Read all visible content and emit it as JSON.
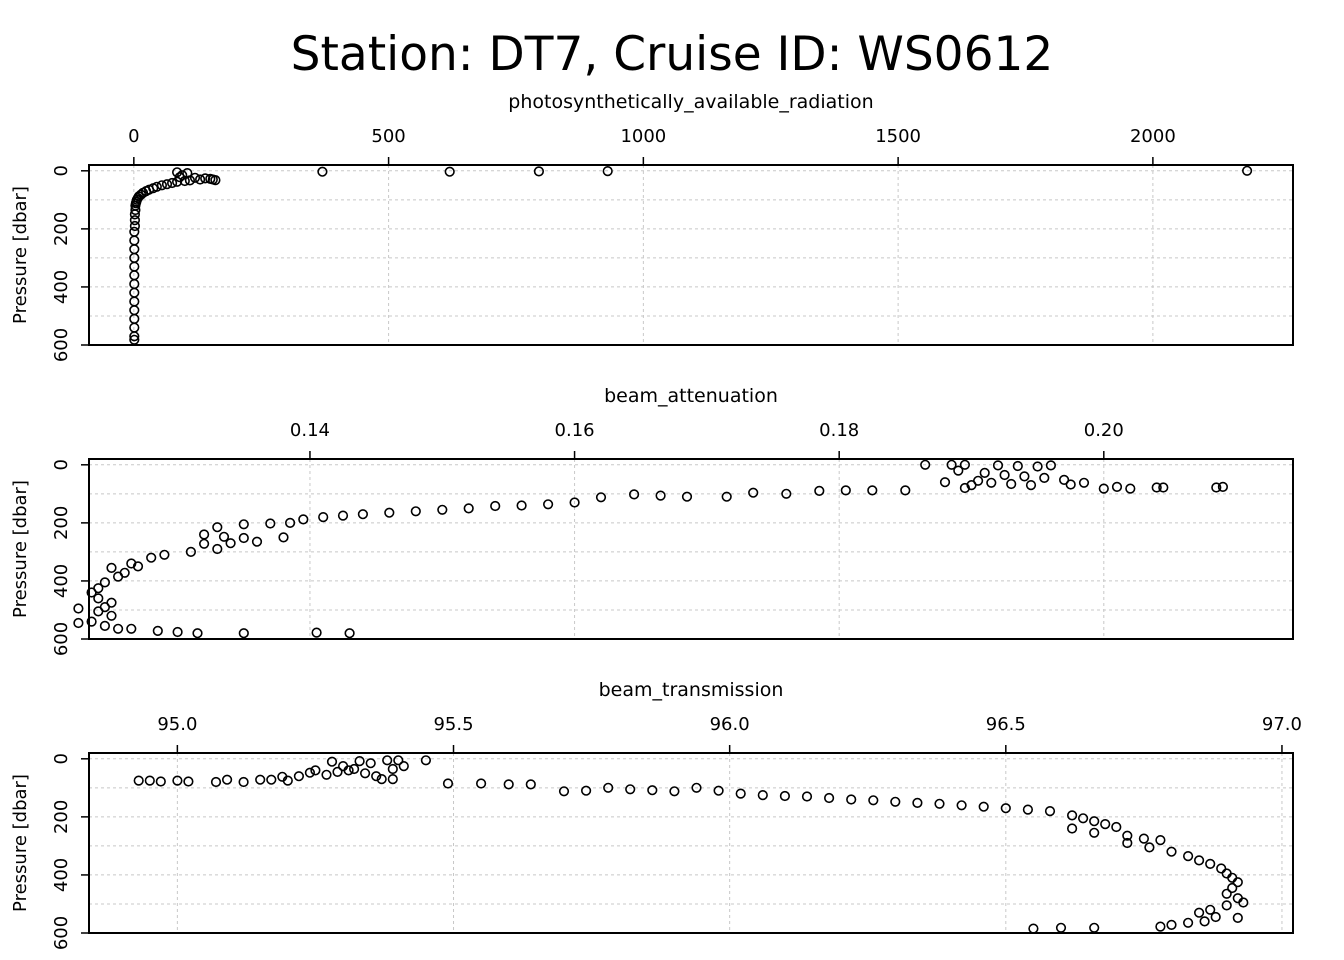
{
  "title": "Station: DT7, Cruise ID: WS0612",
  "chart_data": [
    {
      "type": "scatter",
      "title": "photosynthetically_available_radiation",
      "xlabel": "photosynthetically_available_radiation",
      "ylabel": "Pressure [dbar]",
      "xlim": [
        -88,
        2275
      ],
      "ylim": [
        600,
        -20
      ],
      "y_reversed": true,
      "grid": true,
      "x_ticks": [
        0,
        500,
        1000,
        1500,
        2000
      ],
      "x_tick_labels": [
        "0",
        "500",
        "1000",
        "1500",
        "2000"
      ],
      "y_ticks": [
        0,
        200,
        400,
        600
      ],
      "y_tick_labels": [
        "0",
        "200",
        "400",
        "600"
      ],
      "series": [
        {
          "points": [
            [
              370,
              3
            ],
            [
              620,
              3
            ],
            [
              795,
              2
            ],
            [
              930,
              1
            ],
            [
              2185,
              0
            ],
            [
              85,
              5
            ],
            [
              105,
              8
            ],
            [
              95,
              15
            ],
            [
              90,
              22
            ],
            [
              120,
              24
            ],
            [
              140,
              26
            ],
            [
              150,
              28
            ],
            [
              155,
              30
            ],
            [
              160,
              32
            ],
            [
              130,
              30
            ],
            [
              110,
              33
            ],
            [
              100,
              35
            ],
            [
              85,
              38
            ],
            [
              75,
              42
            ],
            [
              65,
              46
            ],
            [
              55,
              50
            ],
            [
              45,
              55
            ],
            [
              38,
              60
            ],
            [
              30,
              65
            ],
            [
              24,
              70
            ],
            [
              18,
              76
            ],
            [
              14,
              82
            ],
            [
              10,
              88
            ],
            [
              8,
              94
            ],
            [
              6,
              100
            ],
            [
              5,
              106
            ],
            [
              4,
              112
            ],
            [
              3,
              120
            ],
            [
              3,
              135
            ],
            [
              2,
              150
            ],
            [
              2,
              170
            ],
            [
              2,
              190
            ],
            [
              1,
              210
            ],
            [
              1,
              240
            ],
            [
              1,
              270
            ],
            [
              1,
              300
            ],
            [
              1,
              330
            ],
            [
              1,
              360
            ],
            [
              1,
              390
            ],
            [
              1,
              420
            ],
            [
              1,
              450
            ],
            [
              1,
              480
            ],
            [
              1,
              510
            ],
            [
              1,
              540
            ],
            [
              1,
              570
            ],
            [
              1,
              582
            ]
          ]
        }
      ]
    },
    {
      "type": "scatter",
      "title": "beam_attenuation",
      "xlabel": "beam_attenuation",
      "ylabel": "Pressure [dbar]",
      "xlim": [
        0.1233,
        0.2143
      ],
      "ylim": [
        600,
        -20
      ],
      "y_reversed": true,
      "grid": true,
      "x_ticks": [
        0.14,
        0.16,
        0.18,
        0.2
      ],
      "x_tick_labels": [
        "0.14",
        "0.16",
        "0.18",
        "0.20"
      ],
      "y_ticks": [
        0,
        200,
        400,
        600
      ],
      "y_tick_labels": [
        "0",
        "200",
        "400",
        "600"
      ],
      "series": [
        {
          "points": [
            [
              0.1865,
              0
            ],
            [
              0.1885,
              0
            ],
            [
              0.1895,
              0
            ],
            [
              0.192,
              2
            ],
            [
              0.1935,
              4
            ],
            [
              0.195,
              6
            ],
            [
              0.196,
              2
            ],
            [
              0.189,
              20
            ],
            [
              0.191,
              28
            ],
            [
              0.1925,
              35
            ],
            [
              0.194,
              40
            ],
            [
              0.1955,
              45
            ],
            [
              0.1905,
              55
            ],
            [
              0.1915,
              62
            ],
            [
              0.193,
              66
            ],
            [
              0.1945,
              70
            ],
            [
              0.1895,
              80
            ],
            [
              0.197,
              52
            ],
            [
              0.1975,
              68
            ],
            [
              0.1985,
              62
            ],
            [
              0.2,
              82
            ],
            [
              0.201,
              76
            ],
            [
              0.202,
              82
            ],
            [
              0.204,
              78
            ],
            [
              0.2045,
              78
            ],
            [
              0.2085,
              78
            ],
            [
              0.209,
              76
            ],
            [
              0.188,
              60
            ],
            [
              0.19,
              70
            ],
            [
              0.185,
              88
            ],
            [
              0.1825,
              88
            ],
            [
              0.1805,
              88
            ],
            [
              0.1785,
              90
            ],
            [
              0.176,
              100
            ],
            [
              0.1735,
              96
            ],
            [
              0.1715,
              110
            ],
            [
              0.1685,
              110
            ],
            [
              0.1665,
              106
            ],
            [
              0.1645,
              102
            ],
            [
              0.162,
              112
            ],
            [
              0.16,
              130
            ],
            [
              0.158,
              136
            ],
            [
              0.156,
              140
            ],
            [
              0.154,
              142
            ],
            [
              0.152,
              150
            ],
            [
              0.15,
              155
            ],
            [
              0.148,
              160
            ],
            [
              0.146,
              165
            ],
            [
              0.144,
              170
            ],
            [
              0.1425,
              175
            ],
            [
              0.141,
              180
            ],
            [
              0.1395,
              188
            ],
            [
              0.1385,
              200
            ],
            [
              0.137,
              202
            ],
            [
              0.135,
              205
            ],
            [
              0.133,
              215
            ],
            [
              0.132,
              240
            ],
            [
              0.1335,
              248
            ],
            [
              0.135,
              252
            ],
            [
              0.138,
              250
            ],
            [
              0.136,
              265
            ],
            [
              0.134,
              270
            ],
            [
              0.132,
              272
            ],
            [
              0.133,
              290
            ],
            [
              0.131,
              300
            ],
            [
              0.129,
              310
            ],
            [
              0.128,
              320
            ],
            [
              0.1265,
              340
            ],
            [
              0.125,
              355
            ],
            [
              0.127,
              350
            ],
            [
              0.126,
              372
            ],
            [
              0.1255,
              385
            ],
            [
              0.1245,
              405
            ],
            [
              0.124,
              425
            ],
            [
              0.1235,
              440
            ],
            [
              0.124,
              460
            ],
            [
              0.125,
              475
            ],
            [
              0.1245,
              490
            ],
            [
              0.124,
              505
            ],
            [
              0.125,
              520
            ],
            [
              0.1235,
              540
            ],
            [
              0.1245,
              555
            ],
            [
              0.1255,
              565
            ],
            [
              0.1265,
              565
            ],
            [
              0.1285,
              572
            ],
            [
              0.13,
              576
            ],
            [
              0.1315,
              580
            ],
            [
              0.135,
              580
            ],
            [
              0.1405,
              578
            ],
            [
              0.143,
              580
            ],
            [
              0.1225,
              495
            ],
            [
              0.1225,
              545
            ]
          ]
        }
      ]
    },
    {
      "type": "scatter",
      "title": "beam_transmission",
      "xlabel": "beam_transmission",
      "ylabel": "Pressure [dbar]",
      "xlim": [
        94.84,
        97.02
      ],
      "ylim": [
        600,
        -20
      ],
      "y_reversed": true,
      "grid": true,
      "x_ticks": [
        95.0,
        95.5,
        96.0,
        96.5,
        97.0
      ],
      "x_tick_labels": [
        "95.0",
        "95.5",
        "96.0",
        "96.5",
        "97.0"
      ],
      "y_ticks": [
        0,
        200,
        400,
        600
      ],
      "y_tick_labels": [
        "0",
        "200",
        "400",
        "600"
      ],
      "series": [
        {
          "points": [
            [
              94.93,
              75
            ],
            [
              94.95,
              75
            ],
            [
              94.97,
              78
            ],
            [
              95.0,
              75
            ],
            [
              95.02,
              78
            ],
            [
              95.07,
              80
            ],
            [
              95.09,
              72
            ],
            [
              95.12,
              80
            ],
            [
              95.15,
              72
            ],
            [
              95.17,
              72
            ],
            [
              95.19,
              62
            ],
            [
              95.2,
              75
            ],
            [
              95.22,
              60
            ],
            [
              95.24,
              48
            ],
            [
              95.25,
              40
            ],
            [
              95.27,
              55
            ],
            [
              95.29,
              45
            ],
            [
              95.31,
              40
            ],
            [
              95.32,
              35
            ],
            [
              95.34,
              50
            ],
            [
              95.36,
              60
            ],
            [
              95.37,
              70
            ],
            [
              95.39,
              70
            ],
            [
              95.3,
              25
            ],
            [
              95.28,
              10
            ],
            [
              95.33,
              8
            ],
            [
              95.38,
              5
            ],
            [
              95.4,
              5
            ],
            [
              95.45,
              5
            ],
            [
              95.41,
              25
            ],
            [
              95.39,
              35
            ],
            [
              95.35,
              15
            ],
            [
              95.49,
              85
            ],
            [
              95.55,
              85
            ],
            [
              95.6,
              88
            ],
            [
              95.64,
              88
            ],
            [
              95.7,
              112
            ],
            [
              95.74,
              110
            ],
            [
              95.78,
              100
            ],
            [
              95.82,
              105
            ],
            [
              95.86,
              108
            ],
            [
              95.9,
              112
            ],
            [
              95.94,
              100
            ],
            [
              95.98,
              110
            ],
            [
              96.02,
              120
            ],
            [
              96.06,
              125
            ],
            [
              96.1,
              128
            ],
            [
              96.14,
              130
            ],
            [
              96.18,
              135
            ],
            [
              96.22,
              140
            ],
            [
              96.26,
              143
            ],
            [
              96.3,
              148
            ],
            [
              96.34,
              152
            ],
            [
              96.38,
              155
            ],
            [
              96.42,
              160
            ],
            [
              96.46,
              165
            ],
            [
              96.5,
              170
            ],
            [
              96.54,
              175
            ],
            [
              96.58,
              180
            ],
            [
              96.62,
              195
            ],
            [
              96.64,
              205
            ],
            [
              96.66,
              215
            ],
            [
              96.68,
              225
            ],
            [
              96.7,
              235
            ],
            [
              96.62,
              240
            ],
            [
              96.66,
              255
            ],
            [
              96.72,
              265
            ],
            [
              96.75,
              275
            ],
            [
              96.78,
              280
            ],
            [
              96.72,
              290
            ],
            [
              96.76,
              305
            ],
            [
              96.8,
              320
            ],
            [
              96.83,
              335
            ],
            [
              96.85,
              350
            ],
            [
              96.87,
              362
            ],
            [
              96.89,
              378
            ],
            [
              96.9,
              395
            ],
            [
              96.91,
              410
            ],
            [
              96.92,
              425
            ],
            [
              96.91,
              445
            ],
            [
              96.9,
              465
            ],
            [
              96.92,
              480
            ],
            [
              96.93,
              495
            ],
            [
              96.9,
              505
            ],
            [
              96.87,
              520
            ],
            [
              96.85,
              530
            ],
            [
              96.88,
              545
            ],
            [
              96.92,
              548
            ],
            [
              96.86,
              560
            ],
            [
              96.83,
              565
            ],
            [
              96.8,
              572
            ],
            [
              96.78,
              578
            ],
            [
              96.66,
              582
            ],
            [
              96.6,
              582
            ],
            [
              96.55,
              585
            ]
          ]
        }
      ]
    }
  ]
}
